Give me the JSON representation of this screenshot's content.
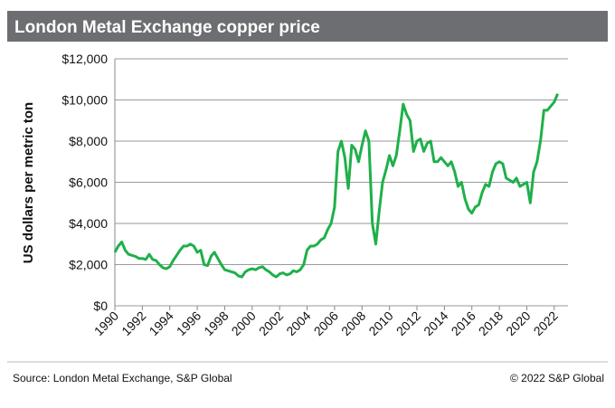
{
  "chart_data": {
    "type": "line",
    "title": "London Metal Exchange copper price",
    "ylabel": "US dollars per metric ton",
    "source": "Source: London Metal Exchange, S&P Global",
    "credit": "© 2022 S&P Global",
    "xlim": [
      1990,
      2023
    ],
    "xticks": [
      1990,
      1992,
      1994,
      1996,
      1998,
      2000,
      2002,
      2004,
      2006,
      2008,
      2010,
      2012,
      2014,
      2016,
      2018,
      2020,
      2022
    ],
    "ylim": [
      0,
      12000
    ],
    "yticks": [
      {
        "value": 0,
        "label": "$0"
      },
      {
        "value": 2000,
        "label": "$2,000"
      },
      {
        "value": 4000,
        "label": "$4,000"
      },
      {
        "value": 6000,
        "label": "$6,000"
      },
      {
        "value": 8000,
        "label": "$8,000"
      },
      {
        "value": 10000,
        "label": "$10,000"
      },
      {
        "value": 12000,
        "label": "$12,000"
      }
    ],
    "grid": true,
    "x": [
      1990,
      1990.25,
      1990.5,
      1990.75,
      1991,
      1991.25,
      1991.5,
      1991.75,
      1992,
      1992.25,
      1992.5,
      1992.75,
      1993,
      1993.25,
      1993.5,
      1993.75,
      1994,
      1994.25,
      1994.5,
      1994.75,
      1995,
      1995.25,
      1995.5,
      1995.75,
      1996,
      1996.25,
      1996.5,
      1996.75,
      1997,
      1997.25,
      1997.5,
      1997.75,
      1998,
      1998.25,
      1998.5,
      1998.75,
      1999,
      1999.25,
      1999.5,
      1999.75,
      2000,
      2000.25,
      2000.5,
      2000.75,
      2001,
      2001.25,
      2001.5,
      2001.75,
      2002,
      2002.25,
      2002.5,
      2002.75,
      2003,
      2003.25,
      2003.5,
      2003.75,
      2004,
      2004.25,
      2004.5,
      2004.75,
      2005,
      2005.25,
      2005.5,
      2005.75,
      2006,
      2006.25,
      2006.5,
      2006.75,
      2007,
      2007.25,
      2007.5,
      2007.75,
      2008,
      2008.25,
      2008.5,
      2008.75,
      2009,
      2009.25,
      2009.5,
      2009.75,
      2010,
      2010.25,
      2010.5,
      2010.75,
      2011,
      2011.25,
      2011.5,
      2011.75,
      2012,
      2012.25,
      2012.5,
      2012.75,
      2013,
      2013.25,
      2013.5,
      2013.75,
      2014,
      2014.25,
      2014.5,
      2014.75,
      2015,
      2015.25,
      2015.5,
      2015.75,
      2016,
      2016.25,
      2016.5,
      2016.75,
      2017,
      2017.25,
      2017.5,
      2017.75,
      2018,
      2018.25,
      2018.5,
      2018.75,
      2019,
      2019.25,
      2019.5,
      2019.75,
      2020,
      2020.25,
      2020.5,
      2020.75,
      2021,
      2021.25,
      2021.5,
      2021.75,
      2022,
      2022.25
    ],
    "series": [
      {
        "name": "Copper price",
        "color": "#1fb04a",
        "values": [
          2600,
          2900,
          3100,
          2700,
          2500,
          2450,
          2400,
          2300,
          2300,
          2250,
          2500,
          2250,
          2200,
          2000,
          1850,
          1800,
          1900,
          2200,
          2450,
          2700,
          2900,
          2900,
          3000,
          2900,
          2600,
          2700,
          2000,
          1950,
          2400,
          2600,
          2300,
          2000,
          1750,
          1700,
          1650,
          1600,
          1450,
          1400,
          1650,
          1750,
          1800,
          1750,
          1850,
          1900,
          1750,
          1650,
          1500,
          1400,
          1550,
          1600,
          1500,
          1550,
          1700,
          1650,
          1750,
          2000,
          2700,
          2900,
          2900,
          3000,
          3200,
          3300,
          3700,
          4000,
          4800,
          7500,
          8000,
          7200,
          5700,
          7800,
          7600,
          7000,
          7800,
          8500,
          8000,
          4000,
          3000,
          4600,
          6000,
          6600,
          7300,
          6800,
          7300,
          8500,
          9800,
          9300,
          9000,
          7500,
          8000,
          8100,
          7500,
          7900,
          8000,
          7000,
          7000,
          7200,
          7000,
          6800,
          7000,
          6500,
          5800,
          6000,
          5200,
          4700,
          4500,
          4800,
          4900,
          5500,
          5900,
          5800,
          6500,
          6900,
          7000,
          6900,
          6200,
          6100,
          6000,
          6200,
          5800,
          5900,
          6000,
          5000,
          6500,
          7000,
          8000,
          9500,
          9500,
          9700,
          9900,
          10300
        ]
      }
    ]
  }
}
